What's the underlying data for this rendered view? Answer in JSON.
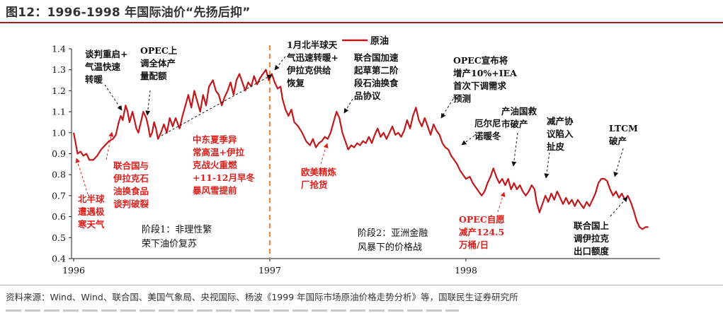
{
  "figure": {
    "title": "图12：1996-1998 年国际油价“先扬后抑”",
    "source": "资料来源：Wind、Wind、联合国、美国气象局、央视国际、杨波《1999 年国际市场原油价格走势分析》等，国联民生证券研究所"
  },
  "colors": {
    "series": "#c0191c",
    "annotation_red": "#e0201c",
    "divider": "#f08a3c",
    "title_rule": "#a61c1c"
  },
  "chart_data": {
    "type": "line",
    "title": "",
    "xlabel": "",
    "ylabel": "",
    "ylim": [
      0.4,
      1.4
    ],
    "xlim": [
      1996.0,
      1998.98
    ],
    "x_ticks": [
      "1996",
      "1997",
      "1998"
    ],
    "y_ticks": [
      "0.4",
      "0.5",
      "0.6",
      "0.7",
      "0.8",
      "0.9",
      "1.0",
      "1.1",
      "1.2",
      "1.3",
      "1.4"
    ],
    "legend": {
      "position": "top-center",
      "entries": [
        "原油"
      ]
    },
    "grid": false,
    "series": [
      {
        "name": "原油",
        "points": [
          [
            1996.0,
            1.0
          ],
          [
            1996.01,
            0.95
          ],
          [
            1996.02,
            0.9
          ],
          [
            1996.035,
            0.91
          ],
          [
            1996.05,
            0.89
          ],
          [
            1996.065,
            0.9
          ],
          [
            1996.08,
            0.87
          ],
          [
            1996.1,
            0.87
          ],
          [
            1996.12,
            0.89
          ],
          [
            1996.14,
            0.92
          ],
          [
            1996.16,
            0.94
          ],
          [
            1996.18,
            0.96
          ],
          [
            1996.2,
            0.97
          ],
          [
            1996.215,
            0.99
          ],
          [
            1996.23,
            1.05
          ],
          [
            1996.24,
            1.08
          ],
          [
            1996.25,
            1.06
          ],
          [
            1996.265,
            1.13
          ],
          [
            1996.275,
            1.1
          ],
          [
            1996.285,
            1.05
          ],
          [
            1996.3,
            1.1
          ],
          [
            1996.31,
            1.06
          ],
          [
            1996.32,
            1.02
          ],
          [
            1996.33,
            1.0
          ],
          [
            1996.345,
            1.06
          ],
          [
            1996.355,
            1.1
          ],
          [
            1996.37,
            1.07
          ],
          [
            1996.38,
            1.03
          ],
          [
            1996.39,
            0.98
          ],
          [
            1996.4,
            1.0
          ],
          [
            1996.41,
            1.05
          ],
          [
            1996.42,
            1.02
          ],
          [
            1996.43,
            0.97
          ],
          [
            1996.445,
            1.0
          ],
          [
            1996.46,
            1.04
          ],
          [
            1996.475,
            1.0
          ],
          [
            1996.49,
            1.07
          ],
          [
            1996.505,
            1.03
          ],
          [
            1996.52,
            1.07
          ],
          [
            1996.54,
            1.02
          ],
          [
            1996.555,
            1.08
          ],
          [
            1996.57,
            1.13
          ],
          [
            1996.585,
            1.18
          ],
          [
            1996.6,
            1.12
          ],
          [
            1996.615,
            1.2
          ],
          [
            1996.63,
            1.15
          ],
          [
            1996.645,
            1.1
          ],
          [
            1996.66,
            1.18
          ],
          [
            1996.675,
            1.13
          ],
          [
            1996.69,
            1.22
          ],
          [
            1996.71,
            1.25
          ],
          [
            1996.725,
            1.2
          ],
          [
            1996.74,
            1.18
          ],
          [
            1996.755,
            1.13
          ],
          [
            1996.77,
            1.17
          ],
          [
            1996.785,
            1.2
          ],
          [
            1996.8,
            1.24
          ],
          [
            1996.815,
            1.18
          ],
          [
            1996.83,
            1.25
          ],
          [
            1996.845,
            1.28
          ],
          [
            1996.86,
            1.24
          ],
          [
            1996.875,
            1.2
          ],
          [
            1996.89,
            1.24
          ],
          [
            1996.905,
            1.22
          ],
          [
            1996.92,
            1.27
          ],
          [
            1996.935,
            1.23
          ],
          [
            1996.95,
            1.26
          ],
          [
            1996.965,
            1.28
          ],
          [
            1996.98,
            1.3
          ],
          [
            1996.995,
            1.25
          ],
          [
            1997.01,
            1.28
          ],
          [
            1997.025,
            1.24
          ],
          [
            1997.04,
            1.21
          ],
          [
            1997.055,
            1.22
          ],
          [
            1997.065,
            1.16
          ],
          [
            1997.08,
            1.11
          ],
          [
            1997.095,
            1.08
          ],
          [
            1997.11,
            1.11
          ],
          [
            1997.125,
            1.05
          ],
          [
            1997.145,
            1.03
          ],
          [
            1997.165,
            1.0
          ],
          [
            1997.185,
            0.96
          ],
          [
            1997.205,
            0.94
          ],
          [
            1997.22,
            0.97
          ],
          [
            1997.235,
            0.93
          ],
          [
            1997.25,
            0.95
          ],
          [
            1997.265,
            0.96
          ],
          [
            1997.28,
            0.98
          ],
          [
            1997.295,
            0.97
          ],
          [
            1997.31,
            1.0
          ],
          [
            1997.325,
            1.05
          ],
          [
            1997.34,
            1.1
          ],
          [
            1997.355,
            1.07
          ],
          [
            1997.37,
            1.0
          ],
          [
            1997.385,
            0.96
          ],
          [
            1997.4,
            0.92
          ],
          [
            1997.415,
            0.94
          ],
          [
            1997.43,
            0.93
          ],
          [
            1997.445,
            0.95
          ],
          [
            1997.46,
            0.94
          ],
          [
            1997.475,
            0.96
          ],
          [
            1997.49,
            0.95
          ],
          [
            1997.505,
            0.98
          ],
          [
            1997.52,
            0.95
          ],
          [
            1997.535,
            0.99
          ],
          [
            1997.55,
            1.02
          ],
          [
            1997.565,
            0.98
          ],
          [
            1997.58,
            1.0
          ],
          [
            1997.595,
            0.97
          ],
          [
            1997.61,
            1.0
          ],
          [
            1997.625,
            1.03
          ],
          [
            1997.64,
            0.99
          ],
          [
            1997.655,
            1.0
          ],
          [
            1997.67,
            0.98
          ],
          [
            1997.685,
            1.01
          ],
          [
            1997.7,
            1.06
          ],
          [
            1997.715,
            1.02
          ],
          [
            1997.73,
            1.08
          ],
          [
            1997.745,
            1.12
          ],
          [
            1997.76,
            1.06
          ],
          [
            1997.775,
            1.03
          ],
          [
            1997.79,
            1.07
          ],
          [
            1997.805,
            1.03
          ],
          [
            1997.82,
            0.99
          ],
          [
            1997.835,
            1.04
          ],
          [
            1997.85,
            1.01
          ],
          [
            1997.865,
            0.99
          ],
          [
            1997.88,
            0.95
          ],
          [
            1997.895,
            0.93
          ],
          [
            1997.91,
            0.92
          ],
          [
            1997.925,
            0.89
          ],
          [
            1997.94,
            0.87
          ],
          [
            1997.955,
            0.85
          ],
          [
            1997.97,
            0.82
          ],
          [
            1997.985,
            0.8
          ],
          [
            1998.0,
            0.78
          ],
          [
            1998.02,
            0.79
          ],
          [
            1998.035,
            0.76
          ],
          [
            1998.05,
            0.74
          ],
          [
            1998.065,
            0.72
          ],
          [
            1998.08,
            0.7
          ],
          [
            1998.095,
            0.72
          ],
          [
            1998.11,
            0.76
          ],
          [
            1998.125,
            0.79
          ],
          [
            1998.14,
            0.83
          ],
          [
            1998.155,
            0.79
          ],
          [
            1998.17,
            0.76
          ],
          [
            1998.185,
            0.78
          ],
          [
            1998.2,
            0.75
          ],
          [
            1998.215,
            0.78
          ],
          [
            1998.23,
            0.73
          ],
          [
            1998.245,
            0.76
          ],
          [
            1998.26,
            0.73
          ],
          [
            1998.275,
            0.75
          ],
          [
            1998.29,
            0.72
          ],
          [
            1998.305,
            0.7
          ],
          [
            1998.32,
            0.72
          ],
          [
            1998.335,
            0.75
          ],
          [
            1998.35,
            0.73
          ],
          [
            1998.36,
            0.67
          ],
          [
            1998.375,
            0.62
          ],
          [
            1998.39,
            0.66
          ],
          [
            1998.405,
            0.7
          ],
          [
            1998.42,
            0.67
          ],
          [
            1998.435,
            0.71
          ],
          [
            1998.45,
            0.68
          ],
          [
            1998.465,
            0.72
          ],
          [
            1998.48,
            0.69
          ],
          [
            1998.495,
            0.66
          ],
          [
            1998.51,
            0.69
          ],
          [
            1998.525,
            0.66
          ],
          [
            1998.54,
            0.68
          ],
          [
            1998.555,
            0.65
          ],
          [
            1998.57,
            0.68
          ],
          [
            1998.585,
            0.66
          ],
          [
            1998.6,
            0.64
          ],
          [
            1998.615,
            0.67
          ],
          [
            1998.63,
            0.65
          ],
          [
            1998.645,
            0.68
          ],
          [
            1998.66,
            0.71
          ],
          [
            1998.675,
            0.76
          ],
          [
            1998.69,
            0.78
          ],
          [
            1998.705,
            0.78
          ],
          [
            1998.72,
            0.77
          ],
          [
            1998.735,
            0.73
          ],
          [
            1998.75,
            0.7
          ],
          [
            1998.765,
            0.72
          ],
          [
            1998.78,
            0.69
          ],
          [
            1998.795,
            0.71
          ],
          [
            1998.81,
            0.68
          ],
          [
            1998.825,
            0.7
          ],
          [
            1998.84,
            0.67
          ],
          [
            1998.855,
            0.63
          ],
          [
            1998.87,
            0.58
          ],
          [
            1998.885,
            0.55
          ],
          [
            1998.9,
            0.54
          ],
          [
            1998.915,
            0.55
          ],
          [
            1998.93,
            0.55
          ]
        ]
      }
    ],
    "divider": {
      "x": 1997.0,
      "style": "dashed"
    },
    "stage_labels": [
      {
        "id": "stage1",
        "lines": [
          "阶段1：非理性繁",
          "荣下油价复苏"
        ]
      },
      {
        "id": "stage2",
        "lines": [
          "阶段2：亚洲金融",
          "风暴下的价格战"
        ]
      }
    ],
    "annotations": [
      {
        "id": "a1",
        "color": "black",
        "lines": [
          "谈判重启+",
          "气温快速",
          "转暖"
        ]
      },
      {
        "id": "a2",
        "color": "black",
        "lines": [
          "OPEC上",
          "调全体产",
          "量配额"
        ]
      },
      {
        "id": "a3",
        "color": "black",
        "lines": [
          "1月北半球天",
          "气迅速转暖+",
          "伊拉克供给",
          "恢复"
        ]
      },
      {
        "id": "a4",
        "color": "black",
        "lines": [
          "联合国加速",
          "起草第二阶",
          "段石油换食",
          "品协议"
        ]
      },
      {
        "id": "a5",
        "color": "black",
        "lines": [
          "OPEC宣布将",
          "增产10%+IEA",
          "首次下调需求",
          "预测"
        ]
      },
      {
        "id": "a6",
        "color": "black",
        "lines": [
          "厄尔尼",
          "诺暖冬"
        ]
      },
      {
        "id": "a7",
        "color": "black",
        "lines": [
          "产油国救",
          "市破产"
        ]
      },
      {
        "id": "a8",
        "color": "black",
        "lines": [
          "减产协",
          "议陷入",
          "扯皮"
        ]
      },
      {
        "id": "a9",
        "color": "black",
        "lines": [
          "LTCM",
          "破产"
        ]
      },
      {
        "id": "a10",
        "color": "black",
        "lines": [
          "联合国上",
          "调伊拉克",
          "出口额度"
        ]
      },
      {
        "id": "a11",
        "color": "red",
        "lines": [
          "北半球",
          "遭遇极",
          "寒天气"
        ]
      },
      {
        "id": "a12",
        "color": "red",
        "lines": [
          "联合国与",
          "伊拉克石",
          "油换食品",
          "谈判破裂"
        ]
      },
      {
        "id": "a13",
        "color": "red",
        "lines": [
          "中东夏季异",
          "常高温+伊拉",
          "克战火重燃",
          "+11-12月早冬",
          "暴风雪提前"
        ]
      },
      {
        "id": "a14",
        "color": "red",
        "lines": [
          "欧美精炼",
          "厂抢货"
        ]
      },
      {
        "id": "a15",
        "color": "red",
        "lines": [
          "OPEC自愿",
          "减产124.5",
          "万桶/日"
        ]
      }
    ]
  }
}
